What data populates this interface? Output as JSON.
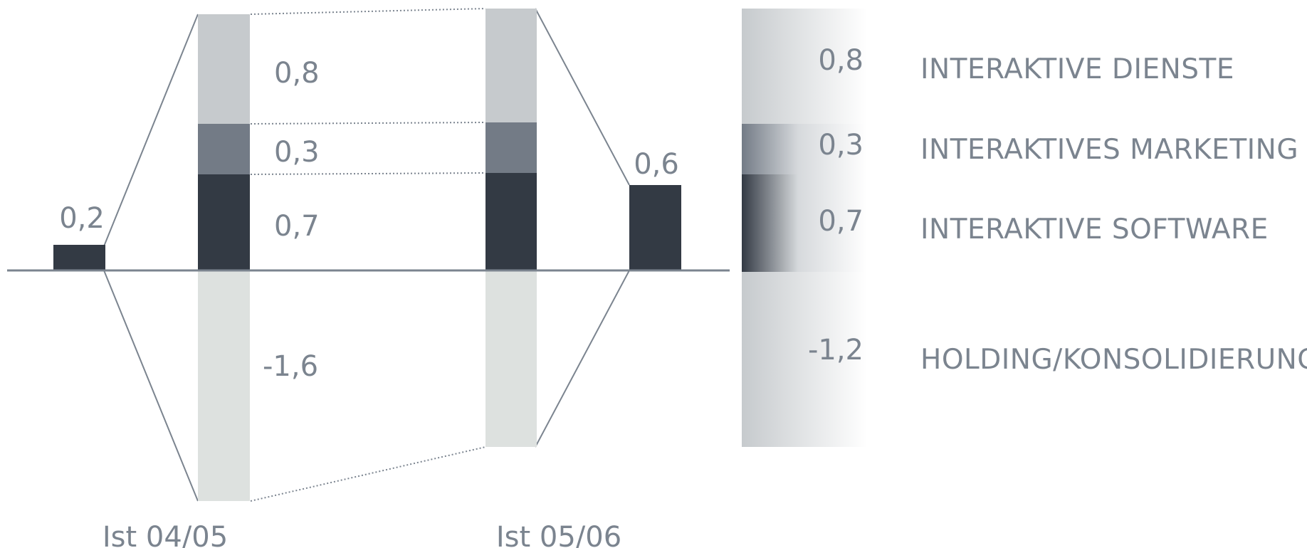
{
  "chart_data": {
    "type": "bar",
    "categories": [
      "Ist 04/05",
      "Ist 05/06"
    ],
    "totals": [
      {
        "category": "Ist 04/05",
        "value": 0.2,
        "label": "0,2"
      },
      {
        "category": "Ist 05/06",
        "value": 0.6,
        "label": "0,6"
      }
    ],
    "segments": [
      {
        "name": "INTERAKTIVE SOFTWARE",
        "values": [
          0.7,
          0.7
        ],
        "label": "0,7",
        "delta_label": "0,7"
      },
      {
        "name": "INTERAKTIVES MARKETING",
        "values": [
          0.3,
          0.3
        ],
        "label": "0,3",
        "delta_label": "0,3"
      },
      {
        "name": "INTERAKTIVE DIENSTE",
        "values": [
          0.8,
          0.8
        ],
        "label": "0,8",
        "delta_label": "0,8"
      },
      {
        "name": "HOLDING/KONSOLIDIERUNG",
        "values": [
          -1.6,
          -1.2
        ],
        "label": "-1,6",
        "delta_label": "-1,2"
      }
    ],
    "colors": {
      "software": "#333a44",
      "marketing": "#737b86",
      "dienste": "#c6cacd",
      "holding": "#dde1df",
      "total": "#333a44",
      "axis": "#7b848f",
      "text": "#7b848f"
    }
  }
}
